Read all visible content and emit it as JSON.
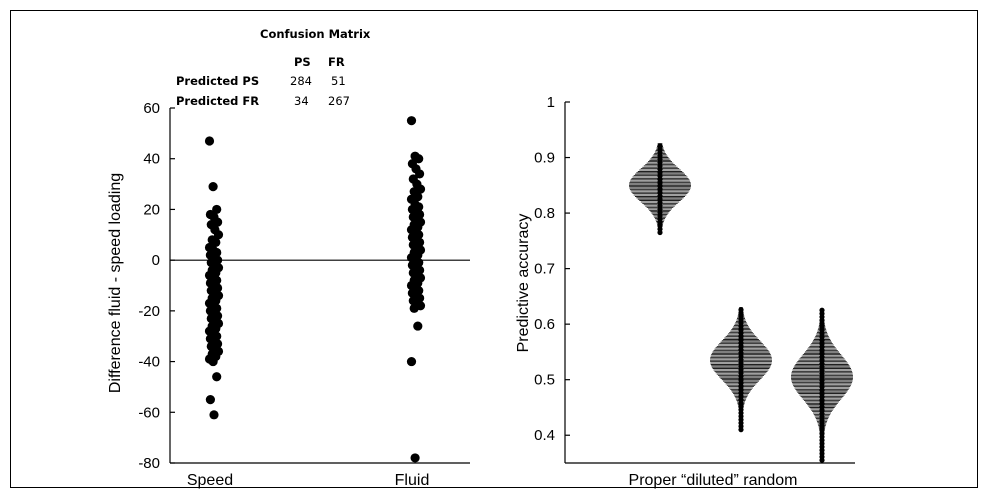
{
  "confusion_matrix": {
    "title": "Confusion Matrix",
    "columns": [
      "PS",
      "FR"
    ],
    "rows": [
      {
        "label": "Predicted PS",
        "values": [
          "284",
          "51"
        ]
      },
      {
        "label": "Predicted FR",
        "values": [
          "34",
          "267"
        ]
      }
    ]
  },
  "chart_data": [
    {
      "type": "scatter",
      "title": "",
      "xlabel": "",
      "ylabel": "Difference fluid - speed loading",
      "categories": [
        "Speed",
        "Fluid"
      ],
      "ylim": [
        -80,
        60
      ],
      "yticks": [
        -80,
        -60,
        -40,
        -20,
        0,
        20,
        40,
        60
      ],
      "reference_line": 0,
      "grid": false,
      "marker_color": "#000000",
      "series": [
        {
          "category": "Speed",
          "values": [
            47,
            29,
            20,
            18,
            17,
            15,
            14,
            12,
            10,
            8,
            7,
            5,
            4,
            3,
            2,
            1,
            0,
            -1,
            -2,
            -3,
            -4,
            -5,
            -6,
            -7,
            -8,
            -9,
            -10,
            -11,
            -12,
            -13,
            -14,
            -15,
            -16,
            -17,
            -18,
            -19,
            -20,
            -21,
            -22,
            -23,
            -24,
            -25,
            -26,
            -27,
            -28,
            -29,
            -30,
            -31,
            -32,
            -33,
            -34,
            -35,
            -36,
            -37,
            -38,
            -39,
            -40,
            -46,
            -55,
            -61
          ]
        },
        {
          "category": "Fluid",
          "values": [
            55,
            41,
            40,
            38,
            36,
            34,
            32,
            30,
            28,
            27,
            25,
            24,
            22,
            21,
            20,
            19,
            18,
            17,
            16,
            15,
            14,
            13,
            12,
            11,
            10,
            9,
            8,
            7,
            6,
            5,
            4,
            3,
            2,
            1,
            0,
            -1,
            -2,
            -3,
            -4,
            -5,
            -6,
            -7,
            -8,
            -9,
            -10,
            -11,
            -12,
            -13,
            -14,
            -15,
            -16,
            -17,
            -18,
            -19,
            -26,
            -40,
            -78
          ]
        }
      ]
    },
    {
      "type": "scatter",
      "title": "",
      "xlabel": "Proper “diluted” random",
      "ylabel": "Predictive accuracy",
      "categories": [
        "Proper",
        "diluted",
        "random"
      ],
      "ylim": [
        0.35,
        1.0
      ],
      "yticks": [
        0.4,
        0.5,
        0.6,
        0.7,
        0.8,
        0.9,
        1
      ],
      "ytick_labels": [
        "0.4",
        "0.5",
        "0.6",
        "0.7",
        "0.8",
        "0.9",
        "1"
      ],
      "grid": false,
      "marker_color": "#000000",
      "distributions": [
        {
          "name": "Proper",
          "center": 0.85,
          "min": 0.765,
          "max": 0.925,
          "spread": 0.03
        },
        {
          "name": "diluted",
          "center": 0.535,
          "min": 0.41,
          "max": 0.63,
          "spread": 0.035
        },
        {
          "name": "random",
          "center": 0.505,
          "min": 0.355,
          "max": 0.625,
          "spread": 0.04
        }
      ]
    }
  ]
}
